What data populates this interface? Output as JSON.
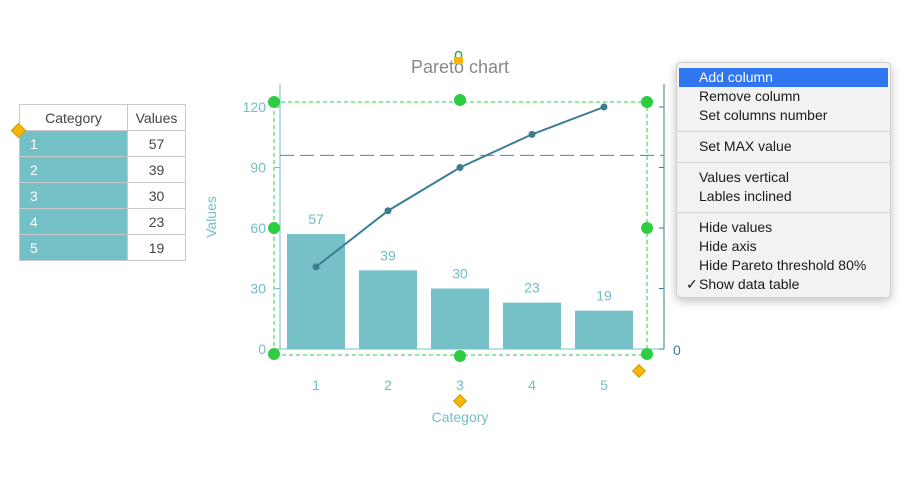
{
  "table": {
    "headers": [
      "Category",
      "Values"
    ],
    "rows": [
      {
        "cat": "1",
        "val": "57"
      },
      {
        "cat": "2",
        "val": "39"
      },
      {
        "cat": "3",
        "val": "30"
      },
      {
        "cat": "4",
        "val": "23"
      },
      {
        "cat": "5",
        "val": "19"
      }
    ]
  },
  "menu": {
    "items": [
      {
        "label": "Add column",
        "selected": true
      },
      {
        "label": "Remove column"
      },
      {
        "label": "Set columns number"
      },
      {
        "label": "Set MAX value"
      },
      {
        "label": "Values vertical"
      },
      {
        "label": "Lables inclined"
      },
      {
        "label": "Hide values"
      },
      {
        "label": "Hide axis"
      },
      {
        "label": "Hide Pareto threshold 80%"
      },
      {
        "label": "Show data table",
        "checked": true
      }
    ],
    "check_glyph": "✓"
  },
  "colors": {
    "bar": "#76c1c8",
    "axis_text": "#6fbfc8",
    "line": "#3b7d91",
    "handle": "#2ecc40",
    "diamond": "#f5b800",
    "selection": "#2ecc40",
    "menu_highlight": "#2f76f0"
  },
  "chart_data": {
    "type": "bar",
    "title": "Pareto chart",
    "xlabel": "Category",
    "ylabel": "Values",
    "categories": [
      "1",
      "2",
      "3",
      "4",
      "5"
    ],
    "values": [
      57,
      39,
      30,
      23,
      19
    ],
    "ylim": [
      0,
      120
    ],
    "yticks": [
      "0",
      "30",
      "60",
      "90",
      "120"
    ],
    "cumulative": [
      57,
      96,
      126,
      149,
      168
    ],
    "threshold_label": "80%",
    "threshold_value": 96,
    "right_axis_visible_labels": [
      "0"
    ]
  }
}
